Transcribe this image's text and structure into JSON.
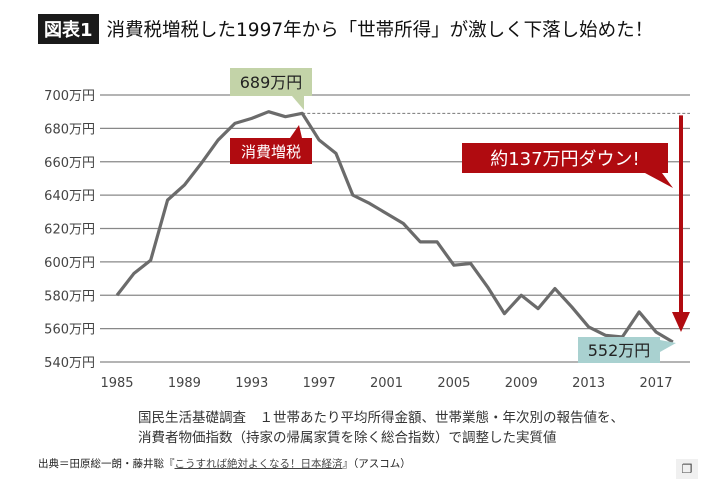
{
  "header": {
    "badge": "図表1",
    "title": "消費税増税した1997年から「世帯所得」が激しく下落し始めた！"
  },
  "chart_data": {
    "type": "line",
    "title": "消費税増税した1997年から「世帯所得」が激しく下落し始めた！",
    "xlabel": "",
    "ylabel": "",
    "ylim": [
      540,
      700
    ],
    "xlim": [
      1985,
      2018
    ],
    "grid": true,
    "yticks": [
      540,
      560,
      580,
      600,
      620,
      640,
      660,
      680,
      700
    ],
    "ytick_labels": [
      "540万円",
      "560万円",
      "580万円",
      "600万円",
      "620万円",
      "640万円",
      "660万円",
      "680万円",
      "700万円"
    ],
    "xticks": [
      "1985",
      "1989",
      "1993",
      "1997",
      "2001",
      "2005",
      "2009",
      "2013",
      "2017"
    ],
    "series": [
      {
        "name": "1世帯あたり平均所得金額（実質値）",
        "x": [
          1985,
          1986,
          1987,
          1988,
          1989,
          1990,
          1991,
          1992,
          1993,
          1994,
          1995,
          1996,
          1997,
          1998,
          1999,
          2000,
          2001,
          2002,
          2003,
          2004,
          2005,
          2006,
          2007,
          2008,
          2009,
          2010,
          2011,
          2012,
          2013,
          2014,
          2015,
          2016,
          2017,
          2018
        ],
        "values": [
          580,
          593,
          601,
          637,
          646,
          659,
          673,
          683,
          686,
          690,
          687,
          689,
          673,
          665,
          640,
          635,
          629,
          623,
          612,
          612,
          598,
          599,
          585,
          569,
          580,
          572,
          584,
          573,
          561,
          556,
          555,
          570,
          558,
          552
        ]
      }
    ],
    "annotations": {
      "peak": "689万円",
      "tax": "消費増税",
      "drop": "約137万円ダウン!",
      "last": "552万円"
    }
  },
  "notes": {
    "line1": "国民生活基礎調査　１世帯あたり平均所得金額、世帯業態・年次別の報告値を、",
    "line2": "消費者物価指数（持家の帰属家賃を除く総合指数）で調整した実質値"
  },
  "source": {
    "prefix": "出典＝田原総一朗・藤井聡『",
    "book": "こうすれば絶対よくなる！日本経済",
    "suffix": "』（アスコム）"
  },
  "colors": {
    "line": "#6b6b6b",
    "red": "#b00b10",
    "green": "#c3d3a8",
    "teal": "#a9d1d0"
  }
}
